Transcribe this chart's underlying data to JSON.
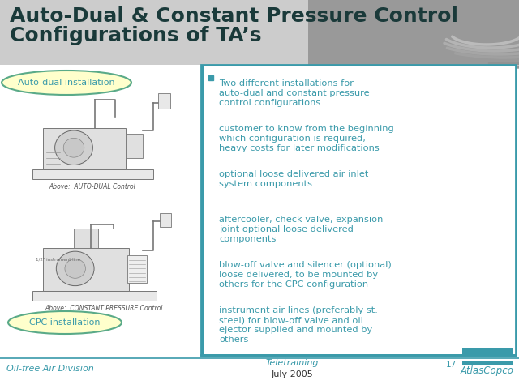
{
  "title_line1": "Auto-Dual & Constant Pressure Control",
  "title_line2": "Configurations of TA’s",
  "title_color": "#1a3a3a",
  "title_fontsize": 18,
  "bg_color": "#ffffff",
  "header_bg_left": "#d0d0d0",
  "header_bg_right": "#aaaaaa",
  "teal_color": "#3a9aaa",
  "label_auto_dual": "Auto-dual installation",
  "label_cpc": "CPC installation",
  "label_oil_free": "Oil-free Air Division",
  "label_teletraining": "Teletraining",
  "label_july": "July 2005",
  "label_page": "17",
  "label_atlas": "AtlasCopco",
  "caption_top": "Above:  AUTO-DUAL Control",
  "caption_bottom": "Above:  CONSTANT PRESSURE Control",
  "bullet_items": [
    "Two different installations for\nauto-dual and constant pressure\ncontrol configurations",
    "customer to know from the beginning\nwhich configuration is required,\nheavy costs for later modifications",
    "optional loose delivered air inlet\nsystem components",
    "aftercooler, check valve, expansion\njoint optional loose delivered\ncomponents",
    "blow-off valve and silencer (optional)\nloose delivered, to be mounted by\nothers for the CPC configuration",
    "instrument air lines (preferably st.\nsteel) for blow-off valve and oil\nejector supplied and mounted by\nothers"
  ],
  "box_border_color": "#3a9aaa",
  "bubble_fill": "#ffffcc",
  "bubble_border": "#5aaa88"
}
